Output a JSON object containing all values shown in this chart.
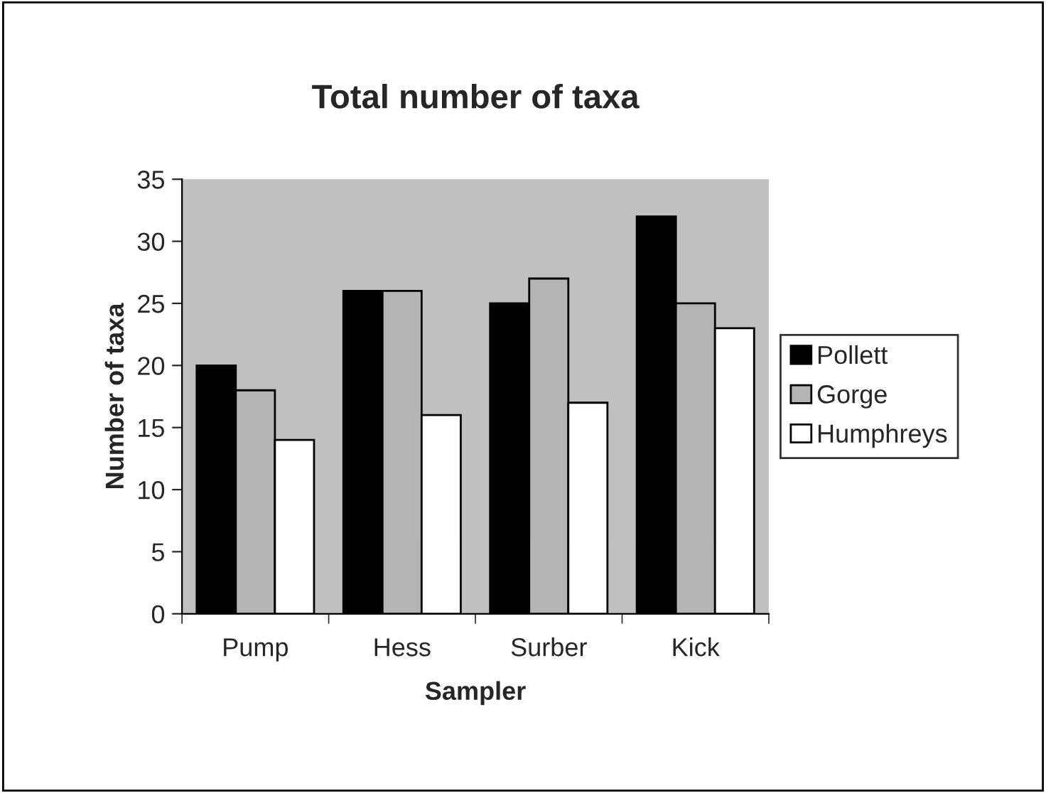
{
  "chart_data": {
    "type": "bar",
    "title": "Total number of taxa",
    "xlabel": "Sampler",
    "ylabel": "Number of taxa",
    "categories": [
      "Pump",
      "Hess",
      "Surber",
      "Kick"
    ],
    "series": [
      {
        "name": "Pollett",
        "color": "#000000",
        "values": [
          20,
          26,
          25,
          32
        ]
      },
      {
        "name": "Gorge",
        "color": "#b4b4b4",
        "values": [
          18,
          26,
          27,
          25
        ]
      },
      {
        "name": "Humphreys",
        "color": "#ffffff",
        "values": [
          14,
          16,
          17,
          23
        ]
      }
    ],
    "ylim": [
      0,
      35
    ],
    "yticks": [
      0,
      5,
      10,
      15,
      20,
      25,
      30,
      35
    ],
    "grid": false,
    "legend": "right"
  }
}
